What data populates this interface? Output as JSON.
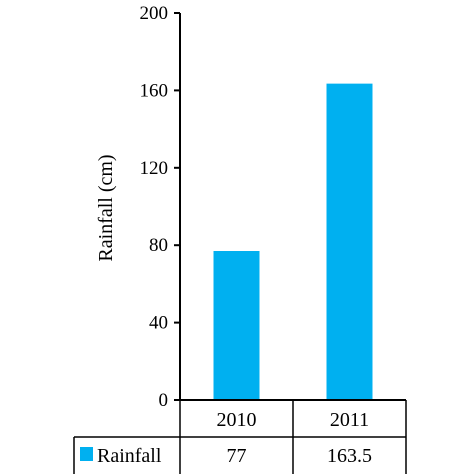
{
  "chart_data": {
    "type": "bar",
    "categories": [
      "2010",
      "2011"
    ],
    "series": [
      {
        "name": "Rainfall",
        "values": [
          77,
          163.5
        ],
        "color": "#00b0f0"
      }
    ],
    "ylabel": "Rainfall (cm)",
    "ylim": [
      0,
      200
    ],
    "yticks": [
      "0",
      "40",
      "80",
      "120",
      "160",
      "200"
    ],
    "data_table": {
      "row_label": "Rainfall",
      "cells": [
        "77",
        "163.5"
      ]
    },
    "grid": false,
    "legend": "data-table"
  }
}
